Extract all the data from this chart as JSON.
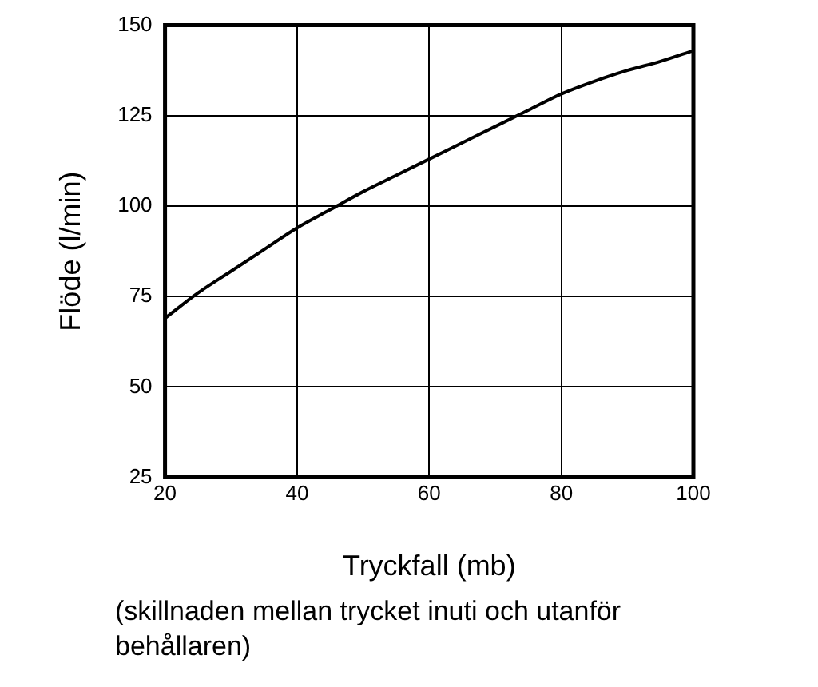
{
  "chart_data": {
    "type": "line",
    "xlabel": "Tryckfall (mb)",
    "ylabel": "Flöde (l/min)",
    "annotations": [
      "(skillnaden mellan trycket inuti och utanför behållaren)"
    ],
    "x": [
      20,
      25,
      30,
      35,
      40,
      45,
      50,
      55,
      60,
      65,
      70,
      75,
      80,
      85,
      90,
      95,
      100
    ],
    "series": [
      {
        "color": "#000000",
        "values": [
          69,
          76,
          82,
          88,
          94,
          99,
          104,
          108.5,
          113,
          117.5,
          122,
          126.5,
          131,
          134.5,
          137.5,
          140,
          143
        ]
      }
    ],
    "xlim": [
      20,
      100
    ],
    "xticks": [
      20,
      40,
      60,
      80,
      100
    ],
    "ylim": [
      25,
      150
    ],
    "yticks": [
      25,
      50,
      75,
      100,
      125,
      150
    ],
    "grid": true,
    "legend": false,
    "marker": "none",
    "line_style": "solid"
  }
}
